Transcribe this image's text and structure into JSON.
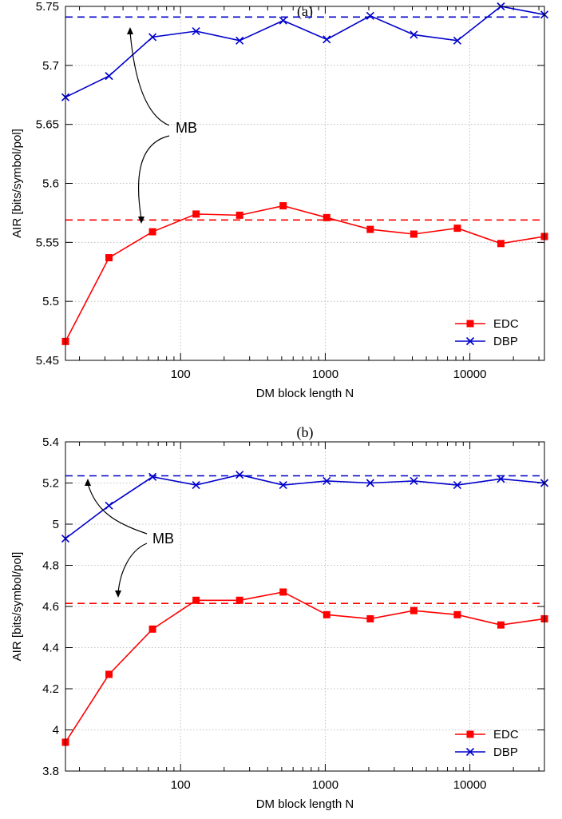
{
  "chart_data": [
    {
      "type": "line",
      "panel_label": "(a)",
      "title": "",
      "xlabel": "DM block length N",
      "ylabel": "AIR [bits/symbol/pol]",
      "xscale": "log",
      "xlim": [
        16,
        32768
      ],
      "ylim": [
        5.45,
        5.75
      ],
      "xticks": [
        {
          "v": 100,
          "label": "100"
        },
        {
          "v": 1000,
          "label": "1000"
        },
        {
          "v": 10000,
          "label": "10000"
        }
      ],
      "yticks": [
        {
          "v": 5.45,
          "label": "5.45"
        },
        {
          "v": 5.5,
          "label": "5.5"
        },
        {
          "v": 5.55,
          "label": "5.55"
        },
        {
          "v": 5.6,
          "label": "5.6"
        },
        {
          "v": 5.65,
          "label": "5.65"
        },
        {
          "v": 5.7,
          "label": "5.7"
        },
        {
          "v": 5.75,
          "label": "5.75"
        }
      ],
      "grid": true,
      "legend_position": "bottom-right",
      "x": [
        16,
        32,
        64,
        128,
        256,
        512,
        1024,
        2048,
        4096,
        8192,
        16384,
        32768
      ],
      "series": [
        {
          "name": "EDC",
          "color": "#ff0000",
          "marker": "square",
          "values": [
            5.466,
            5.537,
            5.559,
            5.574,
            5.573,
            5.581,
            5.571,
            5.561,
            5.557,
            5.562,
            5.549,
            5.555
          ]
        },
        {
          "name": "DBP",
          "color": "#0000cc",
          "marker": "x",
          "values": [
            5.673,
            5.691,
            5.724,
            5.729,
            5.721,
            5.738,
            5.722,
            5.742,
            5.726,
            5.721,
            5.75,
            5.743
          ]
        }
      ],
      "reference_lines": [
        {
          "y": 5.741,
          "color": "#0000cc"
        },
        {
          "y": 5.569,
          "color": "#ff0000"
        }
      ],
      "annotation": {
        "text": "MB"
      }
    },
    {
      "type": "line",
      "panel_label": "(b)",
      "title": "",
      "xlabel": "DM block length N",
      "ylabel": "AIR [bits/symbol/pol]",
      "xscale": "log",
      "xlim": [
        16,
        32768
      ],
      "ylim": [
        3.8,
        5.4
      ],
      "xticks": [
        {
          "v": 100,
          "label": "100"
        },
        {
          "v": 1000,
          "label": "1000"
        },
        {
          "v": 10000,
          "label": "10000"
        }
      ],
      "yticks": [
        {
          "v": 3.8,
          "label": "3.8"
        },
        {
          "v": 4.0,
          "label": "4"
        },
        {
          "v": 4.2,
          "label": "4.2"
        },
        {
          "v": 4.4,
          "label": "4.4"
        },
        {
          "v": 4.6,
          "label": "4.6"
        },
        {
          "v": 4.8,
          "label": "4.8"
        },
        {
          "v": 5.0,
          "label": "5"
        },
        {
          "v": 5.2,
          "label": "5.2"
        },
        {
          "v": 5.4,
          "label": "5.4"
        }
      ],
      "grid": true,
      "legend_position": "bottom-right",
      "x": [
        16,
        32,
        64,
        128,
        256,
        512,
        1024,
        2048,
        4096,
        8192,
        16384,
        32768
      ],
      "series": [
        {
          "name": "EDC",
          "color": "#ff0000",
          "marker": "square",
          "values": [
            3.94,
            4.27,
            4.49,
            4.63,
            4.63,
            4.67,
            4.56,
            4.54,
            4.58,
            4.56,
            4.51,
            4.54
          ]
        },
        {
          "name": "DBP",
          "color": "#0000cc",
          "marker": "x",
          "values": [
            4.93,
            5.09,
            5.23,
            5.19,
            5.24,
            5.19,
            5.21,
            5.2,
            5.21,
            5.19,
            5.22,
            5.2
          ]
        }
      ],
      "reference_lines": [
        {
          "y": 5.235,
          "color": "#0000cc"
        },
        {
          "y": 4.615,
          "color": "#ff0000"
        }
      ],
      "annotation": {
        "text": "MB"
      }
    }
  ]
}
